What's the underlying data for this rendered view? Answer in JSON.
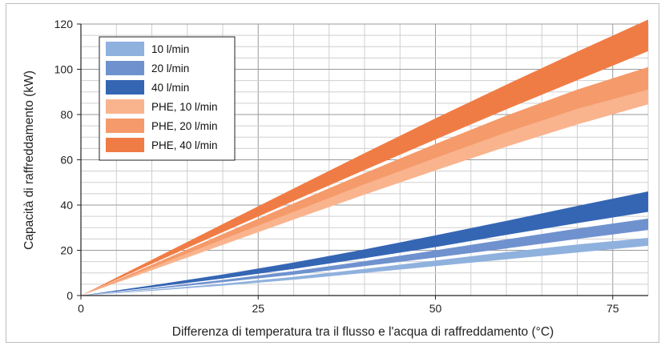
{
  "chart_data": {
    "type": "area",
    "title": "",
    "xlabel": "Differenza di temperatura tra il flusso e l'acqua di raffreddamento (°C)",
    "ylabel": "Capacità di raffreddamento (kW)",
    "xlim": [
      0,
      80
    ],
    "ylim": [
      0,
      120
    ],
    "x_ticks": [
      0,
      25,
      50,
      75
    ],
    "y_ticks": [
      0,
      20,
      40,
      60,
      80,
      100,
      120
    ],
    "x_minor_step": 5,
    "y_minor_step": 5,
    "grid": true,
    "legend_position": "top-left",
    "x": [
      0,
      10,
      20,
      30,
      40,
      50,
      60,
      70,
      80
    ],
    "series": [
      {
        "name": "PHE, 10 l/min",
        "color": "#f9b48e",
        "lower": [
          0,
          11.2,
          22.4,
          33.6,
          44.6,
          55.3,
          65.8,
          75.6,
          84.5
        ],
        "upper": [
          0,
          12.8,
          25.6,
          38.4,
          51.2,
          63.9,
          76.0,
          87.5,
          97.5
        ]
      },
      {
        "name": "PHE, 20 l/min",
        "color": "#f59a6a",
        "lower": [
          0,
          12.4,
          24.8,
          37.0,
          49.2,
          60.8,
          72.1,
          82.5,
          91.0
        ],
        "upper": [
          0,
          13.6,
          27.2,
          40.7,
          54.1,
          67.0,
          79.5,
          91.0,
          101.0
        ]
      },
      {
        "name": "PHE, 40 l/min",
        "color": "#f07c45",
        "lower": [
          0,
          14.0,
          28.0,
          41.8,
          55.5,
          69.0,
          82.3,
          95.2,
          108.0
        ],
        "upper": [
          0,
          15.8,
          31.6,
          47.3,
          62.9,
          78.3,
          93.2,
          107.8,
          122.0
        ]
      },
      {
        "name": "10 l/min",
        "color": "#8fb1de",
        "lower": [
          0,
          2.1,
          4.4,
          7.0,
          10.0,
          13.0,
          16.0,
          19.0,
          22.0
        ],
        "upper": [
          0,
          2.5,
          5.2,
          8.3,
          11.8,
          15.5,
          19.2,
          22.6,
          25.5
        ]
      },
      {
        "name": "20 l/min",
        "color": "#6f92cf",
        "lower": [
          0,
          2.8,
          5.9,
          9.2,
          13.0,
          16.8,
          20.8,
          25.0,
          29.0
        ],
        "upper": [
          0,
          3.3,
          6.9,
          10.8,
          15.2,
          20.0,
          24.8,
          29.6,
          34.0
        ]
      },
      {
        "name": "40 l/min",
        "color": "#3566b4",
        "lower": [
          0,
          3.6,
          7.5,
          11.8,
          16.5,
          21.4,
          26.8,
          32.0,
          37.0
        ],
        "upper": [
          0,
          4.5,
          9.3,
          14.6,
          20.4,
          26.6,
          33.0,
          39.6,
          46.0
        ]
      }
    ],
    "legend_order": [
      "10 l/min",
      "20 l/min",
      "40 l/min",
      "PHE, 10 l/min",
      "PHE, 20 l/min",
      "PHE, 40 l/min"
    ]
  }
}
